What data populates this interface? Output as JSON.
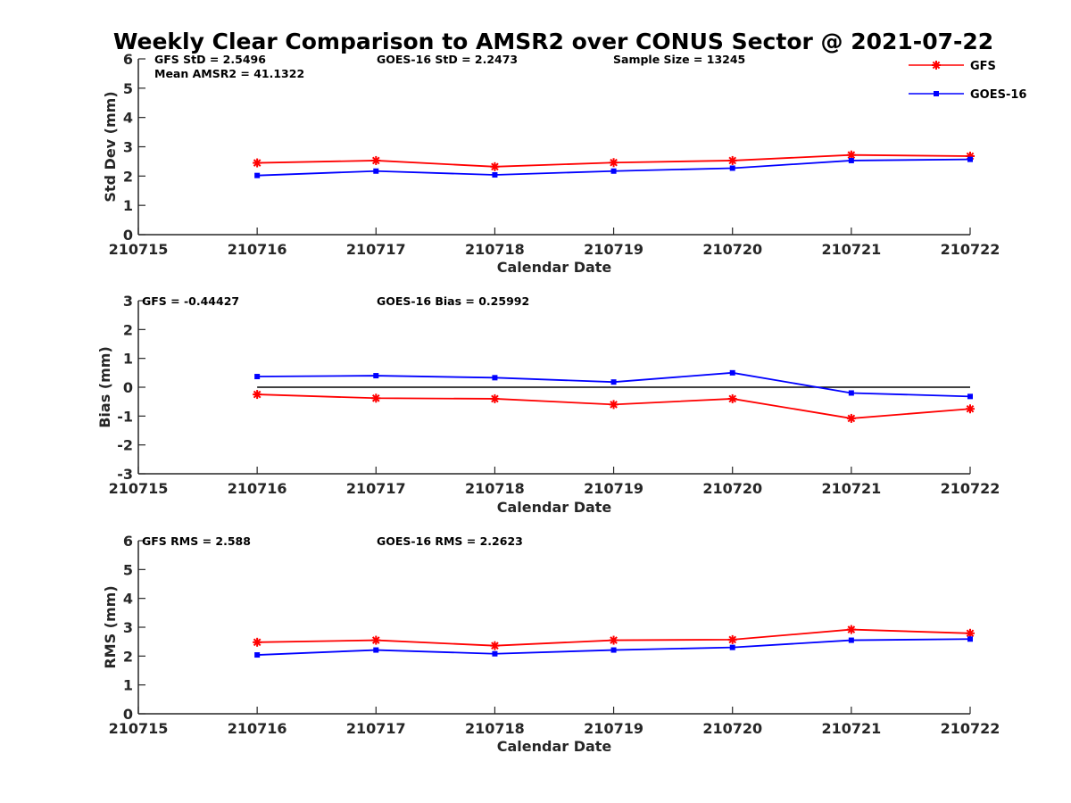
{
  "title": "Weekly Clear Comparison to AMSR2 over CONUS Sector @ 2021-07-22",
  "legend": {
    "placement": "top-right",
    "entries": [
      {
        "name": "GFS",
        "color": "#ff0000",
        "marker": "asterisk"
      },
      {
        "name": "GOES-16",
        "color": "#0000ff",
        "marker": "square"
      }
    ]
  },
  "chart_data": [
    {
      "type": "line",
      "xlabel": "Calendar Date",
      "ylabel": "Std Dev (mm)",
      "x_ticks": [
        "210715",
        "210716",
        "210717",
        "210718",
        "210719",
        "210720",
        "210721",
        "210722"
      ],
      "x": [
        "210716",
        "210717",
        "210718",
        "210719",
        "210720",
        "210721",
        "210722"
      ],
      "ylim": [
        0,
        6
      ],
      "y_ticks": [
        0,
        1,
        2,
        3,
        4,
        5,
        6
      ],
      "zero_line": false,
      "series": [
        {
          "name": "GFS",
          "values": [
            2.45,
            2.53,
            2.32,
            2.46,
            2.53,
            2.72,
            2.68
          ]
        },
        {
          "name": "GOES-16",
          "values": [
            2.02,
            2.17,
            2.04,
            2.17,
            2.27,
            2.53,
            2.57
          ]
        }
      ],
      "annotations": [
        "GFS StD = 2.5496",
        "Mean AMSR2 = 41.1322",
        "GOES-16 StD = 2.2473",
        "Sample Size = 13245"
      ]
    },
    {
      "type": "line",
      "xlabel": "Calendar Date",
      "ylabel": "Bias (mm)",
      "x_ticks": [
        "210715",
        "210716",
        "210717",
        "210718",
        "210719",
        "210720",
        "210721",
        "210722"
      ],
      "x": [
        "210716",
        "210717",
        "210718",
        "210719",
        "210720",
        "210721",
        "210722"
      ],
      "ylim": [
        -3,
        3
      ],
      "y_ticks": [
        -3,
        -2,
        -1,
        0,
        1,
        2,
        3
      ],
      "zero_line": true,
      "series": [
        {
          "name": "GFS",
          "values": [
            -0.25,
            -0.38,
            -0.4,
            -0.6,
            -0.4,
            -1.08,
            -0.75
          ]
        },
        {
          "name": "GOES-16",
          "values": [
            0.37,
            0.4,
            0.33,
            0.18,
            0.5,
            -0.2,
            -0.32
          ]
        }
      ],
      "annotations": [
        "GFS = -0.44427",
        "GOES-16 Bias  = 0.25992"
      ]
    },
    {
      "type": "line",
      "xlabel": "Calendar Date",
      "ylabel": "RMS (mm)",
      "x_ticks": [
        "210715",
        "210716",
        "210717",
        "210718",
        "210719",
        "210720",
        "210721",
        "210722"
      ],
      "x": [
        "210716",
        "210717",
        "210718",
        "210719",
        "210720",
        "210721",
        "210722"
      ],
      "ylim": [
        0,
        6
      ],
      "y_ticks": [
        0,
        1,
        2,
        3,
        4,
        5,
        6
      ],
      "zero_line": false,
      "series": [
        {
          "name": "GFS",
          "values": [
            2.48,
            2.55,
            2.36,
            2.55,
            2.57,
            2.92,
            2.79
          ]
        },
        {
          "name": "GOES-16",
          "values": [
            2.04,
            2.21,
            2.08,
            2.21,
            2.3,
            2.55,
            2.59
          ]
        }
      ],
      "annotations": [
        "GFS RMS = 2.588",
        "GOES-16 RMS = 2.2623"
      ]
    }
  ]
}
